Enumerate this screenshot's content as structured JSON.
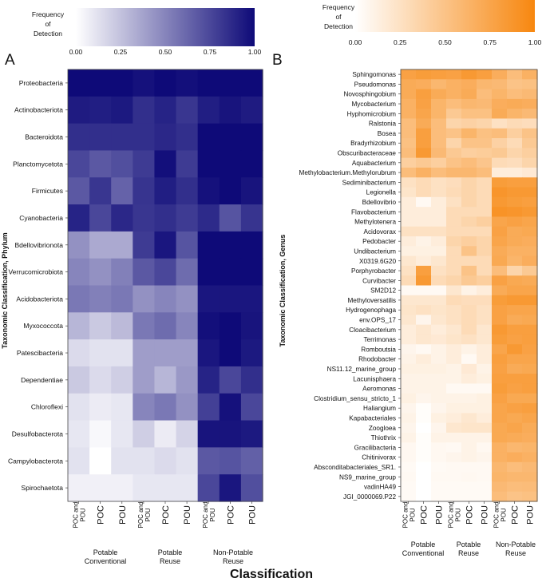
{
  "figure": {
    "xlabel": "Classification",
    "column_labels": [
      "POC and POU",
      "POC",
      "POU",
      "POC and POU",
      "POC",
      "POU",
      "POC and POU",
      "POC",
      "POU"
    ],
    "groups": [
      {
        "line1": "Potable",
        "line2": "Conventional"
      },
      {
        "line1": "Potable",
        "line2": "Reuse"
      },
      {
        "line1": "Non-Potable",
        "line2": "Reuse"
      }
    ]
  },
  "legend": {
    "title_lines": [
      "Frequency",
      "of",
      "Detection"
    ],
    "ticks": [
      "0.00",
      "0.25",
      "0.50",
      "0.75",
      "1.00"
    ]
  },
  "chart_data": [
    {
      "type": "heatmap",
      "panel": "A",
      "ylabel": "Taxonomic Classification, Phylum",
      "color_low": "#ffffff",
      "color_high": "#0e0a78",
      "legend_range": [
        0,
        1
      ],
      "rows": [
        "Proteobacteria",
        "Actinobacteriota",
        "Bacteroidota",
        "Planctomycetota",
        "Firmicutes",
        "Cyanobacteria",
        "Bdellovibrionota",
        "Verrucomicrobiota",
        "Acidobacteriota",
        "Myxococcota",
        "Patescibacteria",
        "Dependentiae",
        "Chloroflexi",
        "Desulfobacterota",
        "Campylobacterota",
        "Spirochaetota"
      ],
      "values": [
        [
          1.0,
          1.0,
          1.0,
          0.97,
          1.0,
          0.98,
          1.0,
          1.0,
          1.0
        ],
        [
          0.93,
          0.92,
          0.94,
          0.85,
          0.9,
          0.82,
          0.92,
          0.96,
          0.93
        ],
        [
          0.85,
          0.85,
          0.85,
          0.85,
          0.88,
          0.85,
          1.0,
          1.0,
          1.0
        ],
        [
          0.75,
          0.68,
          0.72,
          0.8,
          0.98,
          0.8,
          1.0,
          1.0,
          1.0
        ],
        [
          0.68,
          0.82,
          0.64,
          0.83,
          0.92,
          0.85,
          0.97,
          1.0,
          0.96
        ],
        [
          0.9,
          0.75,
          0.88,
          0.82,
          0.85,
          0.8,
          0.87,
          0.7,
          0.83
        ],
        [
          0.45,
          0.35,
          0.35,
          0.8,
          0.95,
          0.7,
          1.0,
          1.0,
          1.0
        ],
        [
          0.5,
          0.45,
          0.52,
          0.68,
          0.75,
          0.6,
          1.0,
          1.0,
          1.0
        ],
        [
          0.55,
          0.52,
          0.55,
          0.45,
          0.5,
          0.45,
          0.95,
          0.95,
          0.95
        ],
        [
          0.3,
          0.22,
          0.28,
          0.55,
          0.6,
          0.5,
          0.98,
          1.0,
          0.96
        ],
        [
          0.15,
          0.12,
          0.12,
          0.4,
          0.4,
          0.4,
          0.95,
          1.0,
          0.94
        ],
        [
          0.22,
          0.15,
          0.2,
          0.4,
          0.3,
          0.42,
          0.9,
          0.75,
          0.85
        ],
        [
          0.12,
          0.08,
          0.1,
          0.5,
          0.55,
          0.45,
          0.78,
          0.97,
          0.75
        ],
        [
          0.1,
          0.03,
          0.1,
          0.2,
          0.08,
          0.18,
          0.96,
          0.96,
          0.94
        ],
        [
          0.12,
          0.0,
          0.12,
          0.12,
          0.15,
          0.12,
          0.68,
          0.7,
          0.65
        ],
        [
          0.06,
          0.06,
          0.06,
          0.1,
          0.1,
          0.1,
          0.75,
          0.95,
          0.72
        ]
      ]
    },
    {
      "type": "heatmap",
      "panel": "B",
      "ylabel": "Taxonomic Classification, Genus",
      "color_low": "#ffffff",
      "color_high": "#f7870f",
      "legend_range": [
        0,
        1
      ],
      "rows": [
        "Sphingomonas",
        "Pseudomonas",
        "Novosphingobium",
        "Mycobacterium",
        "Hyphomicrobium",
        "Ralstonia",
        "Bosea",
        "Bradyrhizobium",
        "Obscuribacteraceae",
        "Aquabacterium",
        "Methylobacterium.Methylorubrum",
        "Sediminibacterium",
        "Legionella",
        "Bdellovibrio",
        "Flavobacterium",
        "Methylotenera",
        "Acidovorax",
        "Pedobacter",
        "Undibacterium",
        "X0319.6G20",
        "Porphyrobacter",
        "Curvibacter",
        "SM2D12",
        "Methyloversatilis",
        "Hydrogenophaga",
        "env.OPS_17",
        "Cloacibacterium",
        "Terrimonas",
        "Romboutsia",
        "Rhodobacter",
        "NS11.12_marine_group",
        "Lacunisphaera",
        "Aeromonas",
        "Clostridium_sensu_stricto_1",
        "Haliangium",
        "Kapabacteriales",
        "Zoogloea",
        "Thiothrix",
        "Gracilibacteria",
        "Chitinivorax",
        "Absconditabacteriales_SR1.",
        "NS9_marine_group",
        "vadinHA49",
        "JGI_0000069.P22"
      ],
      "values": [
        [
          0.78,
          0.82,
          0.8,
          0.78,
          0.85,
          0.8,
          0.68,
          0.55,
          0.65
        ],
        [
          0.7,
          0.68,
          0.6,
          0.65,
          0.68,
          0.6,
          0.58,
          0.5,
          0.52
        ],
        [
          0.7,
          0.8,
          0.7,
          0.65,
          0.7,
          0.55,
          0.62,
          0.55,
          0.58
        ],
        [
          0.65,
          0.78,
          0.62,
          0.55,
          0.6,
          0.58,
          0.68,
          0.7,
          0.68
        ],
        [
          0.65,
          0.75,
          0.62,
          0.45,
          0.52,
          0.52,
          0.7,
          0.62,
          0.58
        ],
        [
          0.55,
          0.7,
          0.55,
          0.35,
          0.38,
          0.35,
          0.25,
          0.3,
          0.28
        ],
        [
          0.55,
          0.8,
          0.55,
          0.5,
          0.62,
          0.52,
          0.55,
          0.4,
          0.5
        ],
        [
          0.52,
          0.8,
          0.55,
          0.35,
          0.5,
          0.5,
          0.38,
          0.3,
          0.45
        ],
        [
          0.55,
          0.85,
          0.58,
          0.45,
          0.4,
          0.42,
          0.45,
          0.35,
          0.4
        ],
        [
          0.4,
          0.45,
          0.4,
          0.5,
          0.55,
          0.48,
          0.3,
          0.28,
          0.35
        ],
        [
          0.55,
          0.65,
          0.55,
          0.6,
          0.6,
          0.55,
          0.15,
          0.15,
          0.18
        ],
        [
          0.25,
          0.3,
          0.25,
          0.28,
          0.35,
          0.3,
          0.82,
          0.8,
          0.8
        ],
        [
          0.22,
          0.3,
          0.25,
          0.3,
          0.35,
          0.3,
          0.88,
          0.85,
          0.85
        ],
        [
          0.15,
          0.05,
          0.15,
          0.25,
          0.35,
          0.3,
          0.85,
          0.82,
          0.8
        ],
        [
          0.15,
          0.15,
          0.15,
          0.3,
          0.3,
          0.3,
          0.9,
          0.88,
          0.85
        ],
        [
          0.15,
          0.15,
          0.15,
          0.3,
          0.35,
          0.4,
          0.75,
          0.78,
          0.75
        ],
        [
          0.25,
          0.25,
          0.25,
          0.3,
          0.3,
          0.3,
          0.78,
          0.7,
          0.72
        ],
        [
          0.15,
          0.1,
          0.15,
          0.35,
          0.4,
          0.35,
          0.75,
          0.7,
          0.68
        ],
        [
          0.12,
          0.12,
          0.12,
          0.3,
          0.5,
          0.35,
          0.7,
          0.65,
          0.65
        ],
        [
          0.2,
          0.15,
          0.2,
          0.3,
          0.3,
          0.3,
          0.72,
          0.62,
          0.68
        ],
        [
          0.25,
          0.8,
          0.25,
          0.3,
          0.5,
          0.3,
          0.55,
          0.35,
          0.45
        ],
        [
          0.3,
          0.85,
          0.3,
          0.35,
          0.45,
          0.4,
          0.78,
          0.72,
          0.7
        ],
        [
          0.05,
          0.05,
          0.05,
          0.2,
          0.1,
          0.15,
          0.7,
          0.75,
          0.75
        ],
        [
          0.2,
          0.2,
          0.2,
          0.3,
          0.28,
          0.28,
          0.82,
          0.85,
          0.85
        ],
        [
          0.22,
          0.25,
          0.22,
          0.25,
          0.3,
          0.25,
          0.78,
          0.75,
          0.75
        ],
        [
          0.2,
          0.08,
          0.2,
          0.25,
          0.3,
          0.25,
          0.78,
          0.7,
          0.72
        ],
        [
          0.15,
          0.2,
          0.15,
          0.2,
          0.3,
          0.2,
          0.85,
          0.8,
          0.8
        ],
        [
          0.15,
          0.2,
          0.18,
          0.22,
          0.25,
          0.2,
          0.82,
          0.78,
          0.8
        ],
        [
          0.08,
          0.05,
          0.1,
          0.15,
          0.1,
          0.15,
          0.75,
          0.85,
          0.78
        ],
        [
          0.1,
          0.15,
          0.1,
          0.15,
          0.05,
          0.15,
          0.8,
          0.75,
          0.75
        ],
        [
          0.12,
          0.12,
          0.12,
          0.1,
          0.18,
          0.1,
          0.78,
          0.7,
          0.72
        ],
        [
          0.1,
          0.1,
          0.1,
          0.1,
          0.15,
          0.12,
          0.8,
          0.8,
          0.8
        ],
        [
          0.1,
          0.1,
          0.1,
          0.05,
          0.05,
          0.05,
          0.82,
          0.78,
          0.8
        ],
        [
          0.12,
          0.08,
          0.1,
          0.1,
          0.1,
          0.12,
          0.78,
          0.72,
          0.72
        ],
        [
          0.08,
          0.02,
          0.08,
          0.12,
          0.12,
          0.12,
          0.75,
          0.78,
          0.8
        ],
        [
          0.1,
          0.02,
          0.12,
          0.15,
          0.2,
          0.15,
          0.75,
          0.72,
          0.75
        ],
        [
          0.08,
          0.0,
          0.08,
          0.2,
          0.22,
          0.22,
          0.72,
          0.75,
          0.7
        ],
        [
          0.1,
          0.02,
          0.1,
          0.1,
          0.1,
          0.1,
          0.72,
          0.7,
          0.68
        ],
        [
          0.06,
          0.02,
          0.06,
          0.05,
          0.1,
          0.06,
          0.65,
          0.6,
          0.62
        ],
        [
          0.06,
          0.02,
          0.06,
          0.08,
          0.1,
          0.08,
          0.65,
          0.68,
          0.65
        ],
        [
          0.04,
          0.0,
          0.04,
          0.05,
          0.05,
          0.05,
          0.6,
          0.55,
          0.58
        ],
        [
          0.05,
          0.0,
          0.05,
          0.05,
          0.06,
          0.05,
          0.62,
          0.6,
          0.6
        ],
        [
          0.04,
          0.0,
          0.04,
          0.04,
          0.04,
          0.04,
          0.58,
          0.55,
          0.56
        ],
        [
          0.04,
          0.0,
          0.04,
          0.04,
          0.04,
          0.04,
          0.55,
          0.5,
          0.52
        ]
      ]
    }
  ]
}
